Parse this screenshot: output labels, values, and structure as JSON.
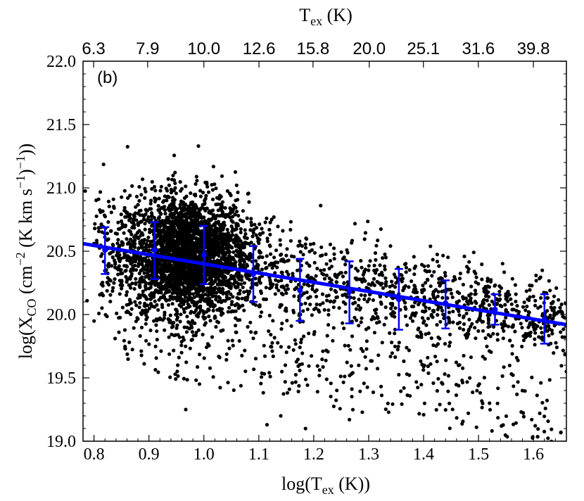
{
  "chart_data": {
    "type": "scatter",
    "panel_label": "(b)",
    "xlabel": {
      "pre": "log(T",
      "sub": "ex",
      "post": " (K))"
    },
    "ylabel": {
      "pre": "log(X",
      "sub": "CO",
      "mid1": " (cm",
      "sup1": "−2",
      "mid2": " (K km s",
      "sup2": "−1",
      "mid3": ")",
      "sup3": "−1",
      "post": "))"
    },
    "top_xlabel": {
      "pre": "T",
      "sub": "ex",
      "post": " (K)"
    },
    "xlim": [
      0.78,
      1.66
    ],
    "ylim": [
      19.0,
      22.0
    ],
    "xticks": [
      "0.8",
      "0.9",
      "1.0",
      "1.1",
      "1.2",
      "1.3",
      "1.4",
      "1.5",
      "1.6"
    ],
    "yticks": [
      "19.0",
      "19.5",
      "20.0",
      "20.5",
      "21.0",
      "21.5",
      "22.0"
    ],
    "top_ticks": [
      "6.3",
      "7.9",
      "10.0",
      "12.6",
      "15.8",
      "20.0",
      "25.1",
      "31.6",
      "39.8"
    ],
    "fit_line": {
      "x": [
        0.78,
        1.66
      ],
      "y": [
        20.56,
        19.92
      ]
    },
    "binned_means": [
      {
        "x": 0.82,
        "y": 20.51,
        "err_low": 20.32,
        "err_high": 20.69
      },
      {
        "x": 0.91,
        "y": 20.51,
        "err_low": 20.28,
        "err_high": 20.73
      },
      {
        "x": 1.0,
        "y": 20.47,
        "err_low": 20.24,
        "err_high": 20.7
      },
      {
        "x": 1.09,
        "y": 20.32,
        "err_low": 20.1,
        "err_high": 20.54
      },
      {
        "x": 1.175,
        "y": 20.19,
        "err_low": 19.95,
        "err_high": 20.44
      },
      {
        "x": 1.265,
        "y": 20.18,
        "err_low": 19.93,
        "err_high": 20.42
      },
      {
        "x": 1.355,
        "y": 20.12,
        "err_low": 19.88,
        "err_high": 20.36
      },
      {
        "x": 1.44,
        "y": 20.09,
        "err_low": 19.89,
        "err_high": 20.27
      },
      {
        "x": 1.53,
        "y": 20.04,
        "err_low": 19.92,
        "err_high": 20.16
      },
      {
        "x": 1.62,
        "y": 19.96,
        "err_low": 19.77,
        "err_high": 20.16
      }
    ],
    "outliers": [
      {
        "x": 0.967,
        "y": 19.25
      },
      {
        "x": 1.115,
        "y": 19.13
      },
      {
        "x": 1.14,
        "y": 19.2
      },
      {
        "x": 1.185,
        "y": 19.1
      },
      {
        "x": 1.265,
        "y": 19.17
      },
      {
        "x": 1.52,
        "y": 19.3
      },
      {
        "x": 1.57,
        "y": 19.37
      },
      {
        "x": 1.65,
        "y": 19.07
      },
      {
        "x": 1.66,
        "y": 19.55
      },
      {
        "x": 1.47,
        "y": 19.48
      }
    ],
    "colors": {
      "points": "#000000",
      "fit": "#0000ff",
      "binned": "#0000ff"
    },
    "grid": false
  }
}
